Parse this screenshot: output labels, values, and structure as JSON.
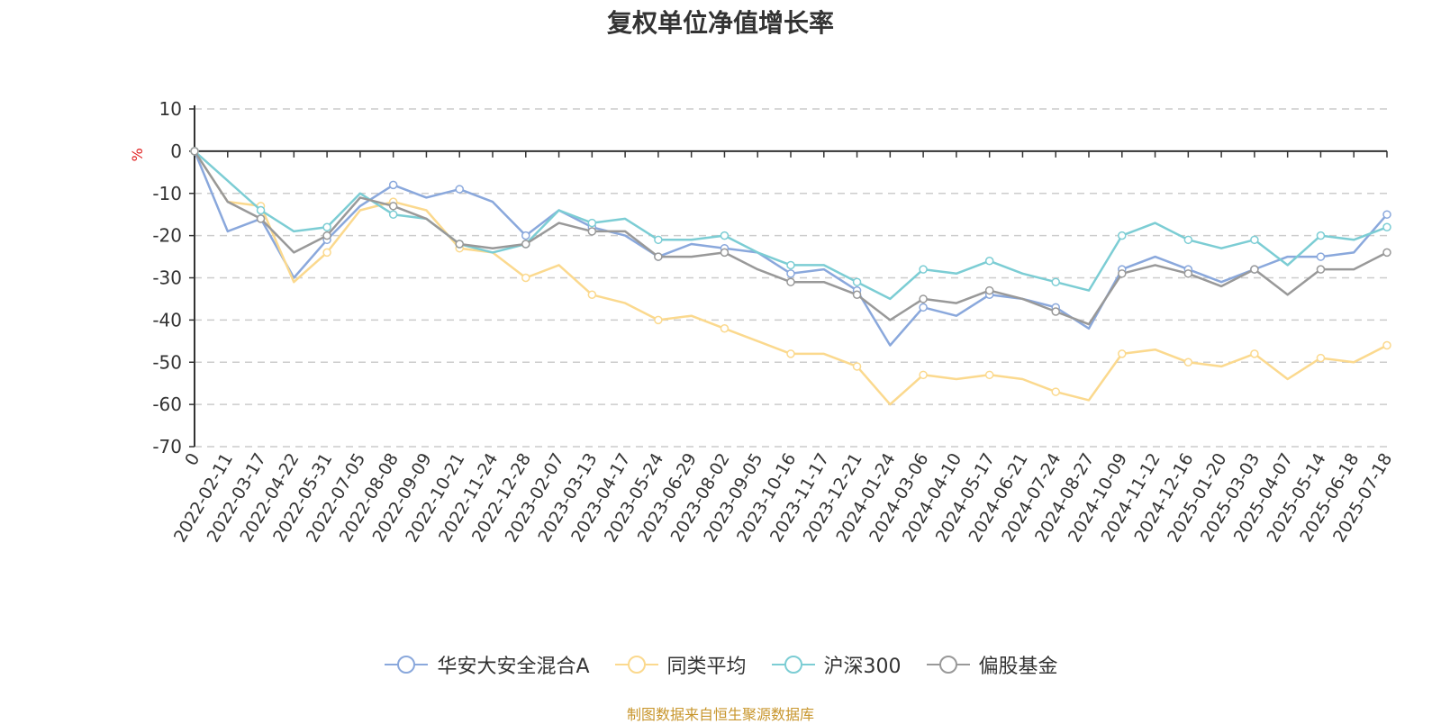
{
  "chart_data": {
    "type": "line",
    "title": "复权单位净值增长率",
    "ylabel": "%",
    "ylim": [
      -70,
      10
    ],
    "yticks": [
      10,
      0,
      -10,
      -20,
      -30,
      -40,
      -50,
      -60,
      -70
    ],
    "grid": true,
    "legend_position": "bottom",
    "x_tick_labels": [
      "0",
      "2022-02-11",
      "2022-03-17",
      "2022-04-22",
      "2022-05-31",
      "2022-07-05",
      "2022-08-08",
      "2022-09-09",
      "2022-10-21",
      "2022-11-24",
      "2022-12-28",
      "2023-02-07",
      "2023-03-13",
      "2023-04-17",
      "2023-05-24",
      "2023-06-29",
      "2023-08-02",
      "2023-09-05",
      "2023-10-16",
      "2023-11-17",
      "2023-12-21",
      "2024-01-24",
      "2024-03-06",
      "2024-04-10",
      "2024-05-17",
      "2024-06-21",
      "2024-07-24",
      "2024-08-27",
      "2024-10-09",
      "2024-11-12",
      "2024-12-16",
      "2025-01-20",
      "2025-03-03",
      "2025-04-07",
      "2025-05-14",
      "2025-06-18",
      "2025-07-18"
    ],
    "series": [
      {
        "name": "华安大安全混合A",
        "color": "#8aa8dc",
        "values": [
          0,
          -19,
          -16,
          -30,
          -21,
          -13,
          -8,
          -11,
          -9,
          -12,
          -20,
          -14,
          -18,
          -20,
          -25,
          -22,
          -23,
          -24,
          -29,
          -28,
          -33,
          -46,
          -37,
          -39,
          -34,
          -35,
          -37,
          -42,
          -28,
          -25,
          -28,
          -31,
          -28,
          -25,
          -25,
          -24,
          -15
        ]
      },
      {
        "name": "同类平均",
        "color": "#fbd98e",
        "values": [
          0,
          -12,
          -13,
          -31,
          -24,
          -14,
          -12,
          -14,
          -23,
          -24,
          -30,
          -27,
          -34,
          -36,
          -40,
          -39,
          -42,
          -45,
          -48,
          -48,
          -51,
          -60,
          -53,
          -54,
          -53,
          -54,
          -57,
          -59,
          -48,
          -47,
          -50,
          -51,
          -48,
          -54,
          -49,
          -50,
          -46
        ]
      },
      {
        "name": "沪深300",
        "color": "#7ccdd4",
        "values": [
          0,
          -7,
          -14,
          -19,
          -18,
          -10,
          -15,
          -16,
          -22,
          -24,
          -22,
          -14,
          -17,
          -16,
          -21,
          -21,
          -20,
          -24,
          -27,
          -27,
          -31,
          -35,
          -28,
          -29,
          -26,
          -29,
          -31,
          -33,
          -20,
          -17,
          -21,
          -23,
          -21,
          -27,
          -20,
          -21,
          -18
        ]
      },
      {
        "name": "偏股基金",
        "color": "#999999",
        "values": [
          0,
          -12,
          -16,
          -24,
          -20,
          -11,
          -13,
          -16,
          -22,
          -23,
          -22,
          -17,
          -19,
          -19,
          -25,
          -25,
          -24,
          -28,
          -31,
          -31,
          -34,
          -40,
          -35,
          -36,
          -33,
          -35,
          -38,
          -41,
          -29,
          -27,
          -29,
          -32,
          -28,
          -34,
          -28,
          -28,
          -24
        ]
      }
    ]
  },
  "footer": {
    "source_note": "制图数据来自恒生聚源数据库"
  }
}
